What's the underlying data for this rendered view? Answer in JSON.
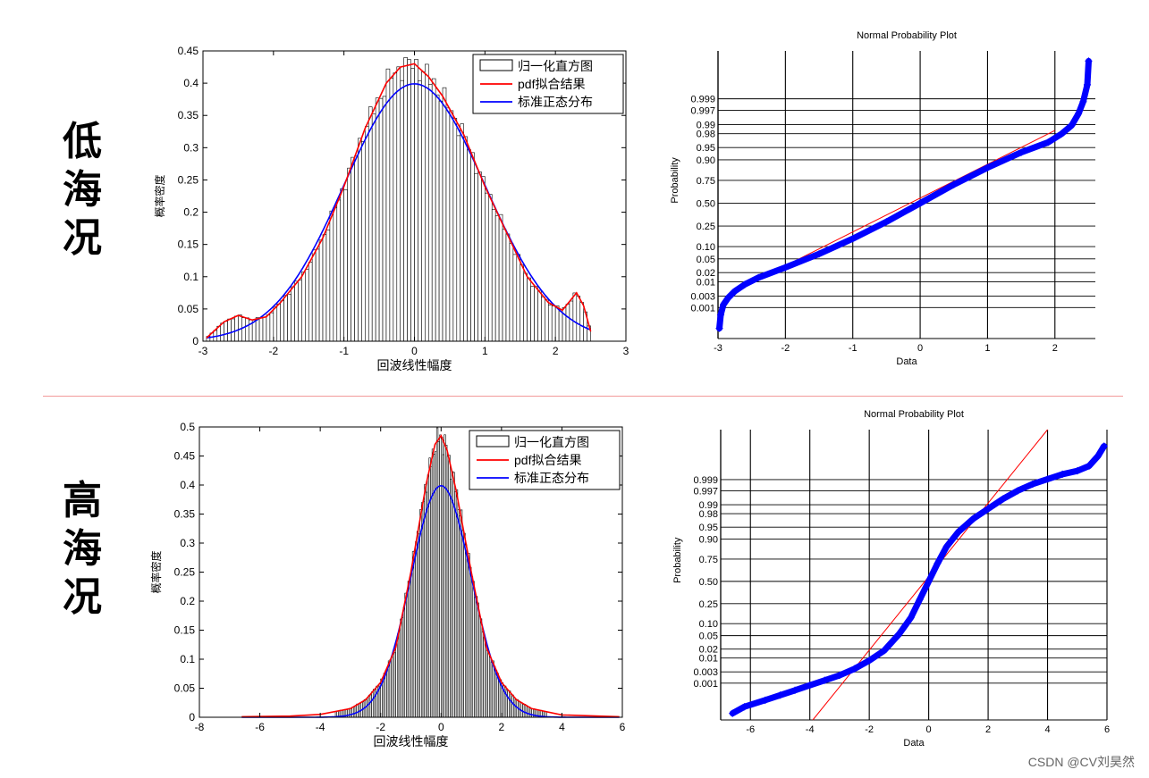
{
  "row_labels": {
    "low": "低海况",
    "high": "高海况"
  },
  "watermark": "CSDN @CV刘昊然",
  "colors": {
    "histogram_bar": "#ffffff",
    "histogram_edge": "#000000",
    "pdf_fit": "#ff0000",
    "standard_normal": "#0000ff",
    "probability_points": "#0000ff",
    "reference_line": "#ff0000",
    "divider": "#f29a9a"
  },
  "chart_data": [
    {
      "id": "low-hist",
      "type": "bar",
      "xlabel": "回波线性幅度",
      "ylabel": "概率密度",
      "xlim": [
        -3,
        3
      ],
      "ylim": [
        0,
        0.45
      ],
      "xticks": [
        -3,
        -2,
        -1,
        0,
        1,
        2,
        3
      ],
      "yticks": [
        0,
        0.05,
        0.1,
        0.15,
        0.2,
        0.25,
        0.3,
        0.35,
        0.4,
        0.45
      ],
      "ytick_labels": [
        "0",
        "0.05",
        "0.1",
        "0.15",
        "0.2",
        "0.25",
        "0.3",
        "0.35",
        "0.4",
        "0.45"
      ],
      "legend_position": "top-right",
      "legend": [
        "归一化直方图",
        "pdf拟合结果",
        "标准正态分布"
      ],
      "histogram": {
        "range": [
          -2.95,
          2.5
        ],
        "peak_x": -0.05,
        "peak_density": 0.43,
        "left_bump": {
          "x": -2.5,
          "density": 0.038
        },
        "right_bump": {
          "x": 2.2,
          "density": 0.04
        }
      },
      "series": [
        {
          "name": "pdf拟合结果",
          "x": [
            -2.95,
            -2.7,
            -2.5,
            -2.3,
            -2.1,
            -1.9,
            -1.6,
            -1.3,
            -1.0,
            -0.7,
            -0.4,
            -0.2,
            0,
            0.2,
            0.4,
            0.7,
            1.0,
            1.3,
            1.6,
            1.9,
            2.1,
            2.3,
            2.4,
            2.5
          ],
          "y": [
            0.005,
            0.03,
            0.04,
            0.033,
            0.038,
            0.06,
            0.1,
            0.16,
            0.24,
            0.33,
            0.4,
            0.425,
            0.43,
            0.41,
            0.38,
            0.32,
            0.24,
            0.17,
            0.1,
            0.06,
            0.048,
            0.075,
            0.055,
            0.015
          ]
        },
        {
          "name": "标准正态分布",
          "function": "standard_normal_pdf",
          "x_range": [
            -2.95,
            2.5
          ]
        }
      ]
    },
    {
      "id": "low-prob",
      "type": "scatter",
      "title": "Normal Probability Plot",
      "xlabel": "Data",
      "ylabel": "Probability",
      "xlim": [
        -3,
        2.6
      ],
      "xticks": [
        -3,
        -2,
        -1,
        0,
        1,
        2
      ],
      "probability_ticks": [
        0.001,
        0.003,
        0.01,
        0.02,
        0.05,
        0.1,
        0.25,
        0.5,
        0.75,
        0.9,
        0.95,
        0.98,
        0.99,
        0.997,
        0.999
      ],
      "probability_tick_labels": [
        "0.001",
        "0.003",
        "0.01",
        "0.02",
        "0.05",
        "0.10",
        "0.25",
        "0.50",
        "0.75",
        "0.90",
        "0.95",
        "0.98",
        "0.99",
        "0.997",
        "0.999"
      ],
      "z_range": [
        -4.0,
        4.5
      ],
      "points": {
        "x": [
          -2.98,
          -2.96,
          -2.92,
          -2.85,
          -2.75,
          -2.6,
          -2.4,
          -2.0,
          -1.5,
          -1.0,
          -0.5,
          0,
          0.5,
          1.0,
          1.5,
          1.9,
          2.1,
          2.25,
          2.35,
          2.42,
          2.48,
          2.5
        ],
        "z": [
          -3.7,
          -3.3,
          -3.0,
          -2.8,
          -2.6,
          -2.4,
          -2.2,
          -1.9,
          -1.5,
          -1.05,
          -0.55,
          0,
          0.55,
          1.05,
          1.5,
          1.8,
          2.05,
          2.3,
          2.65,
          3.0,
          3.5,
          4.2
        ]
      },
      "reference_line": {
        "x": [
          -2.5,
          2.0
        ],
        "z": [
          -2.35,
          2.15
        ]
      }
    },
    {
      "id": "high-hist",
      "type": "bar",
      "xlabel": "回波线性幅度",
      "ylabel": "概率密度",
      "xlim": [
        -8,
        6
      ],
      "ylim": [
        0,
        0.5
      ],
      "xticks": [
        -8,
        -6,
        -4,
        -2,
        0,
        2,
        4,
        6
      ],
      "yticks": [
        0,
        0.05,
        0.1,
        0.15,
        0.2,
        0.25,
        0.3,
        0.35,
        0.4,
        0.45,
        0.5
      ],
      "ytick_labels": [
        "0",
        "0.05",
        "0.1",
        "0.15",
        "0.2",
        "0.25",
        "0.3",
        "0.35",
        "0.4",
        "0.45",
        "0.5"
      ],
      "legend_position": "top-right",
      "legend": [
        "归一化直方图",
        "pdf拟合结果",
        "标准正态分布"
      ],
      "histogram": {
        "range": [
          -3.5,
          3.5
        ],
        "peak_x": -0.05,
        "peak_density": 0.49
      },
      "series": [
        {
          "name": "pdf拟合结果",
          "x": [
            -6.6,
            -5,
            -4,
            -3,
            -2.5,
            -2,
            -1.5,
            -1.0,
            -0.5,
            -0.2,
            0,
            0.2,
            0.5,
            1.0,
            1.5,
            2,
            2.5,
            3,
            4,
            5.9
          ],
          "y": [
            0.001,
            0.002,
            0.005,
            0.015,
            0.03,
            0.06,
            0.12,
            0.25,
            0.4,
            0.47,
            0.485,
            0.46,
            0.39,
            0.25,
            0.12,
            0.06,
            0.03,
            0.015,
            0.004,
            0.001
          ]
        },
        {
          "name": "标准正态分布",
          "function": "standard_normal_pdf",
          "x_range": [
            -6.6,
            5.9
          ]
        }
      ]
    },
    {
      "id": "high-prob",
      "type": "scatter",
      "title": "Normal Probability Plot",
      "xlabel": "Data",
      "ylabel": "Probability",
      "xlim": [
        -7,
        6
      ],
      "xticks": [
        -6,
        -4,
        -2,
        0,
        2,
        4,
        6
      ],
      "probability_ticks": [
        0.001,
        0.003,
        0.01,
        0.02,
        0.05,
        0.1,
        0.25,
        0.5,
        0.75,
        0.9,
        0.95,
        0.98,
        0.99,
        0.997,
        0.999
      ],
      "probability_tick_labels": [
        "0.001",
        "0.003",
        "0.01",
        "0.02",
        "0.05",
        "0.10",
        "0.25",
        "0.50",
        "0.75",
        "0.90",
        "0.95",
        "0.98",
        "0.99",
        "0.997",
        "0.999"
      ],
      "z_range": [
        -4.2,
        4.6
      ],
      "points": {
        "x": [
          -6.6,
          -6.2,
          -5.5,
          -5.0,
          -4.5,
          -4.0,
          -3.5,
          -3.0,
          -2.5,
          -2.0,
          -1.5,
          -1.0,
          -0.6,
          -0.3,
          0,
          0.3,
          0.6,
          1.0,
          1.5,
          2.0,
          2.5,
          3.0,
          3.5,
          4.0,
          4.5,
          5.0,
          5.4,
          5.7,
          5.9
        ],
        "z": [
          -4.0,
          -3.8,
          -3.6,
          -3.45,
          -3.3,
          -3.15,
          -3.0,
          -2.85,
          -2.65,
          -2.4,
          -2.1,
          -1.6,
          -1.1,
          -0.55,
          0,
          0.55,
          1.05,
          1.5,
          1.9,
          2.2,
          2.5,
          2.75,
          2.95,
          3.1,
          3.25,
          3.35,
          3.5,
          3.8,
          4.1
        ]
      },
      "reference_line": {
        "x": [
          -3.9,
          4.0
        ],
        "z": [
          -4.2,
          4.6
        ]
      }
    }
  ]
}
